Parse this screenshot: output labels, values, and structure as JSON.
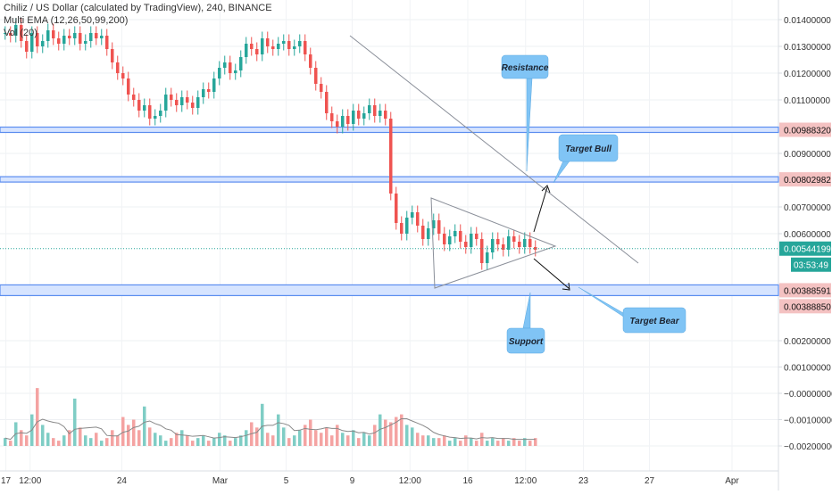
{
  "header": {
    "title": "Chiliz / US Dollar (calculated by TradingView), 240, BINANCE",
    "ema": "Multi EMA (12,26,50,99,200)",
    "vol": "Vol (20)"
  },
  "chart_data": {
    "type": "candlestick",
    "symbol": "Chiliz / US Dollar",
    "interval": "240",
    "exchange": "BINANCE",
    "y_ticks": [
      "0.01400000",
      "0.01300000",
      "0.01200000",
      "0.01100000",
      "0.00900000",
      "0.00700000",
      "0.00600000",
      "0.00200000",
      "0.00100000",
      "−0.00000000",
      "−0.00100000",
      "−0.00200000"
    ],
    "y_tick_values": [
      0.014,
      0.013,
      0.012,
      0.011,
      0.009,
      0.007,
      0.006,
      0.002,
      0.001,
      0,
      -0.001,
      -0.002
    ],
    "x_ticks": [
      {
        "label": "17",
        "x": 0.03
      },
      {
        "label": "12:00",
        "x": 1.5
      },
      {
        "label": "24",
        "x": 7.05
      },
      {
        "label": "Mar",
        "x": 13
      },
      {
        "label": "5",
        "x": 17
      },
      {
        "label": "9",
        "x": 21
      },
      {
        "label": "12:00",
        "x": 24.5
      },
      {
        "label": "16",
        "x": 28
      },
      {
        "label": "12:00",
        "x": 31.5
      },
      {
        "label": "23",
        "x": 35
      },
      {
        "label": "27",
        "x": 39
      },
      {
        "label": "Apr",
        "x": 44
      }
    ],
    "price_levels": [
      {
        "label": "0.00988320",
        "value": 0.0098832,
        "kind": "zone"
      },
      {
        "label": "0.00802982",
        "value": 0.00802982,
        "kind": "zone"
      },
      {
        "label": "0.00388591",
        "value": 0.00388591,
        "kind": "zone"
      },
      {
        "label": "0.00388850",
        "value": 0.0038885,
        "kind": "level"
      }
    ],
    "last_price": {
      "label": "0.00544199",
      "value": 0.00544199,
      "countdown": "03:53:49"
    },
    "ohlc_closes": [
      0.0135,
      0.0134,
      0.0138,
      0.0132,
      0.0128,
      0.0135,
      0.013,
      0.0132,
      0.0136,
      0.0133,
      0.0131,
      0.0134,
      0.0133,
      0.0135,
      0.0131,
      0.0132,
      0.0135,
      0.0133,
      0.0134,
      0.0129,
      0.0124,
      0.012,
      0.0118,
      0.0112,
      0.011,
      0.0106,
      0.0108,
      0.0103,
      0.0104,
      0.0106,
      0.0112,
      0.011,
      0.0108,
      0.0111,
      0.0109,
      0.0107,
      0.0111,
      0.0114,
      0.0113,
      0.0118,
      0.0122,
      0.0124,
      0.012,
      0.0121,
      0.0126,
      0.0131,
      0.0129,
      0.0127,
      0.0133,
      0.013,
      0.0129,
      0.0131,
      0.0132,
      0.0129,
      0.013,
      0.0132,
      0.0127,
      0.0122,
      0.0116,
      0.0113,
      0.0105,
      0.0102,
      0.01,
      0.0104,
      0.0101,
      0.0106,
      0.0103,
      0.0105,
      0.0108,
      0.0104,
      0.0106,
      0.0103,
      0.0075,
      0.0064,
      0.006,
      0.0066,
      0.0068,
      0.0063,
      0.0058,
      0.0062,
      0.0065,
      0.006,
      0.0056,
      0.0059,
      0.0061,
      0.0057,
      0.0055,
      0.006,
      0.0058,
      0.0049,
      0.0053,
      0.0058,
      0.0056,
      0.0054,
      0.0059,
      0.0057,
      0.0055,
      0.0058,
      0.0055,
      0.0054
    ],
    "volumes": [
      0.0003,
      0.0002,
      0.0009,
      0.0006,
      0.0004,
      0.0012,
      0.0022,
      0.0008,
      0.0005,
      0.0003,
      0.0002,
      0.0004,
      0.0006,
      0.0018,
      0.0007,
      0.0004,
      0.0003,
      0.0005,
      0.0002,
      0.0003,
      0.0006,
      0.0004,
      0.0011,
      0.0008,
      0.001,
      0.0006,
      0.0015,
      0.0007,
      0.0005,
      0.0004,
      0.0002,
      0.0003,
      0.0005,
      0.0006,
      0.0004,
      0.0002,
      0.0003,
      0.0004,
      0.0002,
      0.0003,
      0.0005,
      0.0004,
      0.0002,
      0.0003,
      0.0004,
      0.0006,
      0.0009,
      0.0007,
      0.0016,
      0.0005,
      0.0004,
      0.0012,
      0.0007,
      0.0003,
      0.0004,
      0.0006,
      0.0008,
      0.001,
      0.0006,
      0.0005,
      0.0007,
      0.0004,
      0.0008,
      0.0005,
      0.0004,
      0.0006,
      0.0003,
      0.0005,
      0.0004,
      0.0008,
      0.0012,
      0.001,
      0.0009,
      0.0011,
      0.0012,
      0.0008,
      0.0007,
      0.0005,
      0.0004,
      0.0004,
      0.0003,
      0.0003,
      0.0004,
      0.0002,
      0.0003,
      0.0002,
      0.0004,
      0.0003,
      0.0002,
      0.0005,
      0.0002,
      0.0003,
      0.0002,
      0.0003,
      0.0002,
      0.0003,
      0.0002,
      0.0003,
      0.0002,
      0.0003
    ],
    "annotations": [
      {
        "label": "Resistance"
      },
      {
        "label": "Target Bull"
      },
      {
        "label": "Target Bear"
      },
      {
        "label": "Support"
      }
    ],
    "colors": {
      "up": "#26a69a",
      "down": "#ef5350",
      "volume_up": "#7fcdc5",
      "volume_down": "#f4a3a2",
      "zone": "#5b8def",
      "zone_fill": "#d6e4ff",
      "callout": "#80c4f5",
      "price_label_bg": "#f4c2c2",
      "last_price_bg": "#26a69a"
    }
  }
}
